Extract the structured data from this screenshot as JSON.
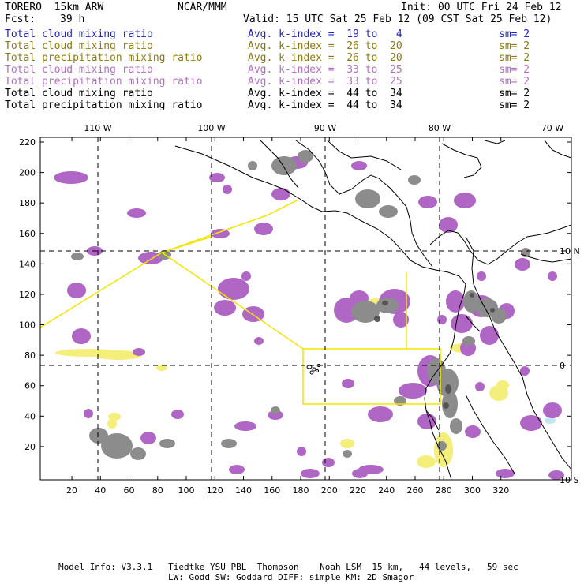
{
  "header": {
    "model": "TORERO  15km ARW",
    "org": "NCAR/MMM",
    "init": "Init: 00 UTC Fri 24 Feb 12",
    "fcst_label": "Fcst:",
    "fcst_value": "39 h",
    "valid": "Valid: 15 UTC Sat 25 Feb 12 (09 CST Sat 25 Feb 12)"
  },
  "legend": [
    {
      "variable": "Total cloud mixing ratio",
      "kindex": "Avg. k-index =  19 to   4",
      "sm": "sm= 2",
      "color": "#2222cc"
    },
    {
      "variable": "Total cloud mixing ratio",
      "kindex": "Avg. k-index =  26 to  20",
      "sm": "sm= 2",
      "color": "#8c7a10"
    },
    {
      "variable": "Total precipitation mixing ratio",
      "kindex": "Avg. k-index =  26 to  20",
      "sm": "sm= 2",
      "color": "#8c7a10"
    },
    {
      "variable": "Total cloud mixing ratio",
      "kindex": "Avg. k-index =  33 to  25",
      "sm": "sm= 2",
      "color": "#b070c0"
    },
    {
      "variable": "Total precipitation mixing ratio",
      "kindex": "Avg. k-index =  33 to  25",
      "sm": "sm= 2",
      "color": "#b070c0"
    },
    {
      "variable": "Total cloud mixing ratio",
      "kindex": "Avg. k-index =  44 to  34",
      "sm": "sm= 2",
      "color": "#000000"
    },
    {
      "variable": "Total precipitation mixing ratio",
      "kindex": "Avg. k-index =  44 to  34",
      "sm": "sm= 2",
      "color": "#000000"
    }
  ],
  "map": {
    "lon_labels": [
      "110 W",
      "100 W",
      "90 W",
      "80 W",
      "70 W"
    ],
    "lat_labels": [
      "10 N",
      "0",
      "10 S"
    ],
    "x_ticks": [
      "20",
      "40",
      "60",
      "80",
      "100",
      "120",
      "140",
      "160",
      "180",
      "200",
      "220",
      "240",
      "260",
      "280",
      "300",
      "320"
    ],
    "y_ticks": [
      "220",
      "200",
      "180",
      "160",
      "140",
      "120",
      "100",
      "80",
      "60",
      "40",
      "20"
    ],
    "colors": {
      "cloud_purple": "#b066c4",
      "cloud_gray": "#8c8c8c",
      "cloud_darkgray": "#555555",
      "precip_yellow": "#f4ee7a",
      "precip_cyan": "#bfe8f4",
      "domain_yellow": "#f2e600",
      "coast": "#000000"
    }
  },
  "footer": {
    "line1": "Model Info: V3.3.1   Tiedtke YSU PBL  Thompson    Noah LSM  15 km,   44 levels,   59 sec",
    "line2": "LW: Godd SW: Goddard DIFF: simple KM: 2D Smagor"
  }
}
